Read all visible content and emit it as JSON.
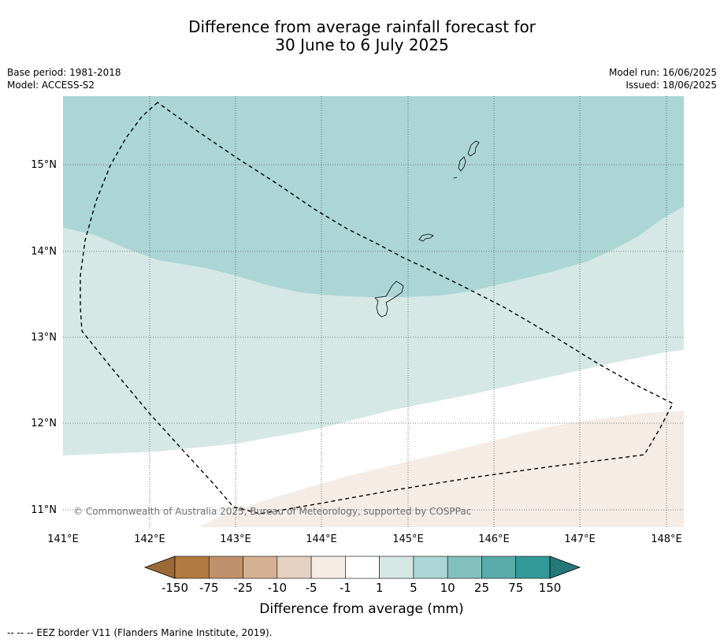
{
  "title_line1": "Difference from average rainfall forecast for",
  "title_line2": "30 June to 6 July 2025",
  "base_period": "Base period: 1981-2018",
  "model": "Model: ACCESS-S2",
  "model_run": "Model run: 16/06/2025",
  "issued": "Issued: 18/06/2025",
  "map": {
    "lon_ticks": [
      "141°E",
      "142°E",
      "143°E",
      "144°E",
      "145°E",
      "146°E",
      "147°E",
      "148°E"
    ],
    "lat_ticks": [
      "15°N",
      "14°N",
      "13°N",
      "12°N",
      "11°N"
    ],
    "copyright": "© Commonwealth of Australia 2025, Bureau of Meteorology, supported by COSPPac"
  },
  "colorbar": {
    "labels": [
      "-150",
      "-75",
      "-25",
      "-10",
      "-5",
      "-1",
      "1",
      "5",
      "10",
      "25",
      "75",
      "150"
    ],
    "colors": [
      "#9b6a37",
      "#b07a40",
      "#c0916a",
      "#d4b193",
      "#e6d0bf",
      "#f5ece6",
      "#ffffff",
      "#d5e8e6",
      "#acd5d5",
      "#85c0c0",
      "#5aabab",
      "#349999",
      "#267878"
    ],
    "title": "Difference from average (mm)"
  },
  "legend": {
    "eez": "--  --  -- EEZ border V11 (Flanders Marine Institute, 2019)."
  }
}
